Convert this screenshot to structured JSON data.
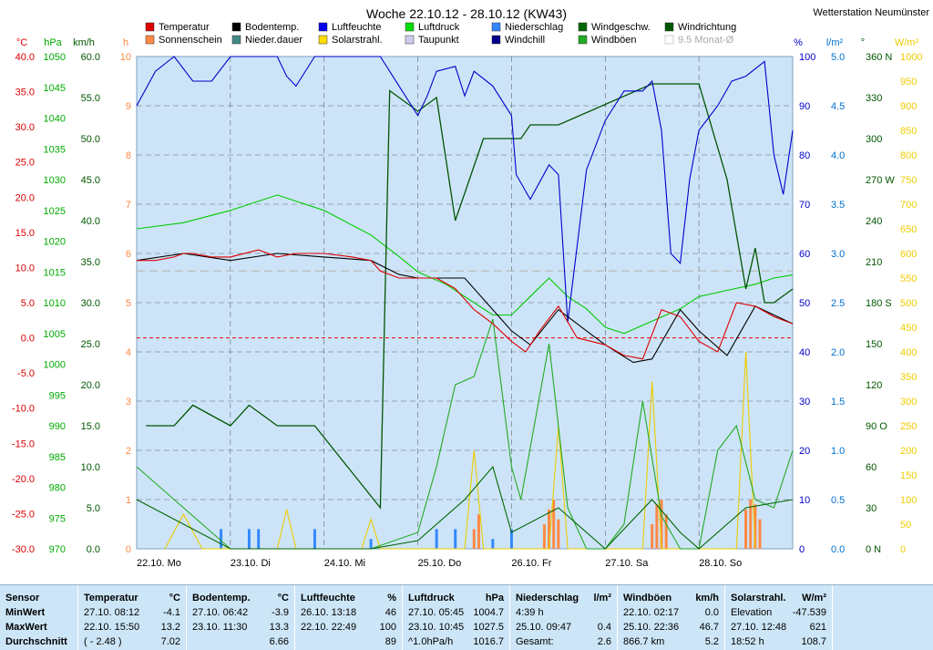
{
  "header": {
    "title": "Woche 22.10.12 - 28.10.12 (KW43)",
    "station": "Wetterstation Neumünster"
  },
  "colors": {
    "plot_bg": "#cde4f8",
    "temp": "#dd0000",
    "soil": "#000000",
    "hum": "#0000cc",
    "press": "#00cc00",
    "rain": "#3388ff",
    "wind": "#006600",
    "gust": "#22aa22",
    "solar": "#eecc00",
    "dew": "#aaaacc",
    "sun": "#ff8844",
    "chill": "#000088",
    "dir": "#005500"
  },
  "legend": [
    {
      "label": "Temperatur",
      "color": "#dd0000"
    },
    {
      "label": "Sonnenschein",
      "color": "#ff8844"
    },
    {
      "label": "Bodentemp.",
      "color": "#000000"
    },
    {
      "label": "Nieder.dauer",
      "color": "#448888"
    },
    {
      "label": "Luftfeuchte",
      "color": "#0000ee"
    },
    {
      "label": "Solarstrahl.",
      "color": "#ffdd00"
    },
    {
      "label": "Luftdruck",
      "color": "#00dd00"
    },
    {
      "label": "Taupunkt",
      "color": "#ccccee"
    },
    {
      "label": "Niederschlag",
      "color": "#3388ff"
    },
    {
      "label": "Windchill",
      "color": "#000088"
    },
    {
      "label": "Windgeschw.",
      "color": "#006600"
    },
    {
      "label": "Windböen",
      "color": "#22aa22"
    },
    {
      "label": "Windrichtung",
      "color": "#005500"
    },
    {
      "label": "9.5 Monat-Ø",
      "color": "#cccccc"
    }
  ],
  "chart_data": {
    "type": "line",
    "x_range": [
      "22.10.12 00:00",
      "28.10.12 24:00"
    ],
    "x_ticks": [
      "22.10.  Mo",
      "23.10.  Di",
      "24.10.  Mi",
      "25.10.  Do",
      "26.10.  Fr",
      "27.10.  Sa",
      "28.10.  So"
    ],
    "axes": {
      "temp_c": {
        "unit": "°C",
        "ticks": [
          "40.0",
          "35.0",
          "30.0",
          "25.0",
          "20.0",
          "15.0",
          "10.0",
          "5.0",
          "0.0",
          "-5.0",
          "-10.0",
          "-15.0",
          "-20.0",
          "-25.0",
          "-30.0"
        ]
      },
      "pressure_hpa": {
        "unit": "hPa",
        "ticks": [
          "1050",
          "1045",
          "1040",
          "1035",
          "1030",
          "1025",
          "1020",
          "1015",
          "1010",
          "1005",
          "1000",
          "995",
          "990",
          "985",
          "980",
          "975",
          "970"
        ]
      },
      "wind_kmh": {
        "unit": "km/h",
        "ticks": [
          "60.0",
          "55.0",
          "50.0",
          "45.0",
          "40.0",
          "35.0",
          "30.0",
          "25.0",
          "20.0",
          "15.0",
          "10.0",
          "5.0",
          "0.0"
        ]
      },
      "sun_h": {
        "unit": "h",
        "ticks": [
          "10",
          "9",
          "8",
          "7",
          "6",
          "5",
          "4",
          "3",
          "2",
          "1",
          "0"
        ]
      },
      "humidity_pct": {
        "unit": "%",
        "ticks": [
          "100",
          "90",
          "80",
          "70",
          "60",
          "50",
          "40",
          "30",
          "20",
          "10",
          "0"
        ]
      },
      "rain_lm2": {
        "unit": "l/m²",
        "ticks": [
          "5.0",
          "4.5",
          "4.0",
          "3.5",
          "3.0",
          "2.5",
          "2.0",
          "1.5",
          "1.0",
          "0.5",
          "0.0"
        ]
      },
      "direction_deg": {
        "unit": "°",
        "ticks": [
          "360 N",
          "330",
          "300",
          "270 W",
          "240",
          "210",
          "180 S",
          "150",
          "120",
          "90  O",
          "60",
          "30",
          "0   N"
        ]
      },
      "solar_wm2": {
        "unit": "W/m²",
        "ticks": [
          "1000",
          "950",
          "900",
          "850",
          "800",
          "750",
          "700",
          "650",
          "600",
          "550",
          "500",
          "450",
          "400",
          "350",
          "300",
          "250",
          "200",
          "150",
          "100",
          "50",
          "0"
        ]
      }
    },
    "series": [
      {
        "name": "Temperatur",
        "axis": "temp_c",
        "x": [
          0,
          0.2,
          0.4,
          0.5,
          0.6,
          0.8,
          1.0,
          1.3,
          1.5,
          1.7,
          2.0,
          2.3,
          2.5,
          2.6,
          2.8,
          3.0,
          3.2,
          3.4,
          3.6,
          3.8,
          4.0,
          4.15,
          4.3,
          4.5,
          4.7,
          5.0,
          5.2,
          5.4,
          5.6,
          5.8,
          6.0,
          6.2,
          6.4,
          6.6,
          6.8,
          7.0
        ],
        "values": [
          11,
          11,
          11.5,
          12,
          12,
          11.5,
          11.5,
          12.5,
          11.5,
          12,
          12,
          11.5,
          11,
          9.5,
          8.5,
          8.5,
          8.5,
          7,
          4,
          2,
          -0.5,
          -2,
          1,
          4.5,
          0,
          -1,
          -2.5,
          -3,
          4,
          3,
          -0.5,
          -2,
          5,
          4.5,
          3,
          2
        ]
      },
      {
        "name": "Bodentemp.",
        "axis": "temp_c",
        "x": [
          0,
          0.5,
          1.0,
          1.5,
          2.0,
          2.5,
          2.8,
          3.0,
          3.5,
          3.8,
          4.0,
          4.2,
          4.5,
          4.8,
          5.0,
          5.3,
          5.5,
          5.8,
          6.0,
          6.3,
          6.6,
          7.0
        ],
        "values": [
          11,
          12,
          11,
          12,
          11.5,
          11,
          9,
          8.5,
          8.5,
          4,
          1,
          -1,
          4,
          1,
          -1,
          -3.5,
          -3,
          4,
          1,
          -2.5,
          4.5,
          2
        ]
      },
      {
        "name": "Luftfeuchte",
        "axis": "humidity_pct",
        "x": [
          0,
          0.2,
          0.4,
          0.6,
          0.8,
          1.0,
          1.2,
          1.5,
          1.6,
          1.7,
          1.9,
          2.0,
          2.2,
          2.4,
          2.6,
          2.8,
          3.0,
          3.1,
          3.2,
          3.4,
          3.5,
          3.6,
          3.8,
          4.0,
          4.05,
          4.2,
          4.4,
          4.5,
          4.6,
          4.8,
          5.0,
          5.1,
          5.2,
          5.4,
          5.5,
          5.6,
          5.7,
          5.8,
          5.9,
          6.0,
          6.2,
          6.35,
          6.5,
          6.7,
          6.8,
          6.9,
          7.0
        ],
        "values": [
          90,
          97,
          100,
          95,
          95,
          100,
          100,
          100,
          96,
          94,
          100,
          100,
          100,
          100,
          100,
          94,
          88,
          92,
          97,
          98,
          92,
          97,
          94,
          88,
          76,
          71,
          78,
          76,
          46,
          77,
          87,
          90,
          93,
          93,
          95,
          85,
          60,
          58,
          75,
          85,
          90,
          95,
          96,
          99,
          80,
          72,
          85
        ]
      },
      {
        "name": "Luftdruck",
        "axis": "pressure_hpa",
        "x": [
          0,
          0.5,
          1.0,
          1.5,
          2.0,
          2.5,
          2.8,
          3.0,
          3.3,
          3.6,
          3.8,
          4.0,
          4.2,
          4.4,
          4.6,
          4.8,
          5.0,
          5.2,
          5.5,
          5.8,
          6.0,
          6.3,
          6.6,
          6.8,
          7.0
        ],
        "values": [
          1022,
          1023,
          1025,
          1027.5,
          1025,
          1021,
          1017.5,
          1015,
          1013,
          1010,
          1008,
          1008,
          1011,
          1014,
          1011,
          1009,
          1006,
          1005,
          1007,
          1009,
          1011,
          1012,
          1013,
          1014,
          1014.5
        ]
      },
      {
        "name": "Windböen",
        "axis": "wind_kmh",
        "x": [
          0,
          0.5,
          1.0,
          1.5,
          2.0,
          2.5,
          3.0,
          3.2,
          3.4,
          3.6,
          3.8,
          4.0,
          4.1,
          4.4,
          4.6,
          4.8,
          5.0,
          5.2,
          5.4,
          5.6,
          5.8,
          6.0,
          6.2,
          6.4,
          6.6,
          6.8,
          7.0
        ],
        "values": [
          10,
          5,
          0,
          0,
          0,
          0,
          2,
          10,
          20,
          21,
          28,
          10,
          6,
          25,
          5,
          0,
          0,
          3,
          18,
          4,
          0,
          0,
          12,
          15,
          6,
          5,
          12
        ]
      },
      {
        "name": "Windgeschw.",
        "axis": "wind_kmh",
        "x": [
          0,
          0.5,
          1.0,
          1.5,
          2.0,
          2.5,
          3.0,
          3.5,
          3.8,
          4.0,
          4.5,
          5.0,
          5.5,
          5.8,
          6.0,
          6.5,
          7.0
        ],
        "values": [
          6,
          3,
          0,
          0,
          0,
          0,
          1,
          6,
          10,
          2,
          5,
          0,
          6,
          2,
          0,
          5,
          6
        ]
      },
      {
        "name": "Solarstrahl.",
        "axis": "solar_wm2",
        "x": [
          0.3,
          0.5,
          0.7,
          1.5,
          1.6,
          1.7,
          2.4,
          2.5,
          2.6,
          3.5,
          3.6,
          3.7,
          4.4,
          4.5,
          4.6,
          5.4,
          5.5,
          5.6,
          6.4,
          6.5,
          6.6
        ],
        "values": [
          0,
          70,
          0,
          0,
          80,
          0,
          0,
          60,
          0,
          0,
          200,
          0,
          0,
          250,
          0,
          0,
          340,
          0,
          0,
          400,
          0
        ]
      },
      {
        "name": "Windrichtung",
        "axis": "direction_deg",
        "x": [
          0.1,
          0.4,
          0.6,
          1.0,
          1.2,
          1.5,
          1.9,
          2.6,
          2.7,
          3.0,
          3.2,
          3.4,
          3.6,
          3.7,
          3.9,
          4.0,
          4.1,
          4.2,
          4.5,
          5.5,
          5.6,
          5.7,
          6.0,
          6.3,
          6.5,
          6.6,
          6.7,
          6.8,
          7.0
        ],
        "values": [
          90,
          90,
          105,
          90,
          105,
          90,
          90,
          30,
          335,
          320,
          330,
          240,
          280,
          300,
          300,
          300,
          300,
          310,
          310,
          340,
          340,
          340,
          340,
          270,
          190,
          220,
          180,
          180,
          190
        ]
      },
      {
        "name": "Niederschlag",
        "axis": "rain_lm2",
        "x": [
          0.9,
          1.2,
          1.3,
          1.9,
          2.5,
          3.2,
          3.4,
          3.8,
          4.0
        ],
        "values": [
          0.2,
          0.2,
          0.2,
          0.2,
          0.1,
          0.2,
          0.2,
          0.1,
          0.2
        ]
      },
      {
        "name": "Sonnenschein",
        "axis": "sun_h",
        "x": [
          3.6,
          3.65,
          4.35,
          4.4,
          4.45,
          4.5,
          5.5,
          5.55,
          5.6,
          5.65,
          6.5,
          6.55,
          6.6,
          6.65
        ],
        "values": [
          0.4,
          0.7,
          0.5,
          0.8,
          1,
          0.6,
          0.5,
          0.9,
          1,
          0.7,
          0.8,
          1,
          0.9,
          0.6
        ]
      }
    ]
  },
  "stats": {
    "sensor": {
      "title": "Sensor",
      "rows": [
        "MinWert",
        "MaxWert",
        "Durchschnitt"
      ]
    },
    "temperature": {
      "title": "Temperatur",
      "unit": "°C",
      "min_time": "27.10.  08:12",
      "min_val": "-4.1",
      "max_time": "22.10.  15:50",
      "max_val": "13.2",
      "avg_note": "( - 2.48 )",
      "avg_val": "7.02"
    },
    "soil": {
      "title": "Bodentemp.",
      "unit": "°C",
      "min_time": "27.10.  06:42",
      "min_val": "-3.9",
      "max_time": "23.10.  11:30",
      "max_val": "13.3",
      "avg_val": "6.66"
    },
    "humidity": {
      "title": "Luftfeuchte",
      "unit": "%",
      "min_time": "26.10.  13:18",
      "min_val": "46",
      "max_time": "22.10.  22:49",
      "max_val": "100",
      "avg_val": "89"
    },
    "pressure": {
      "title": "Luftdruck",
      "unit": "hPa",
      "min_time": "27.10.  05:45",
      "min_val": "1004.7",
      "max_time": "23.10.  10:45",
      "max_val": "1027.5",
      "avg_note": "^1.0hPa/h",
      "avg_val": "1016.7"
    },
    "rain": {
      "title": "Niederschlag",
      "unit": "l/m²",
      "min_time": "4:39 h",
      "min_val": "",
      "max_time": "25.10.  09:47",
      "max_val": "0.4",
      "avg_note": "Gesamt:",
      "avg_val": "2.6"
    },
    "gust": {
      "title": "Windböen",
      "unit": "km/h",
      "min_time": "22.10.  02:17",
      "min_val": "0.0",
      "max_time": "25.10.  22:36",
      "max_val": "46.7",
      "avg_note": "866.7 km",
      "avg_val": "5.2"
    },
    "solar": {
      "title": "Solarstrahl.",
      "unit": "W/m²",
      "min_time": "Elevation",
      "min_val": "-47.539",
      "max_time": "27.10.  12:48",
      "max_val": "621",
      "avg_note": "18:52 h",
      "avg_val": "108.7"
    }
  }
}
